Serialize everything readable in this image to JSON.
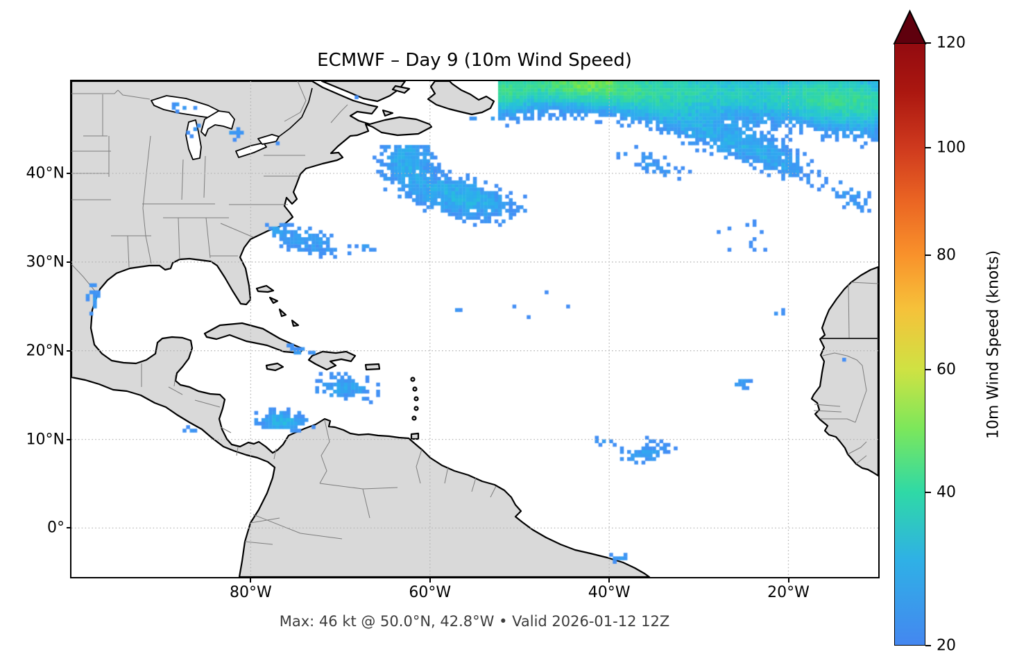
{
  "title": "ECMWF – Day 9 (10m Wind Speed)",
  "caption": "Max: 46 kt @ 50.0°N, 42.8°W • Valid 2026-01-12 12Z",
  "axes": {
    "x_ticks": [
      {
        "label": "80°W",
        "lon": -80
      },
      {
        "label": "60°W",
        "lon": -60
      },
      {
        "label": "40°W",
        "lon": -40
      },
      {
        "label": "20°W",
        "lon": -20
      }
    ],
    "y_ticks": [
      {
        "label": "40°N",
        "lat": 40
      },
      {
        "label": "30°N",
        "lat": 30
      },
      {
        "label": "20°N",
        "lat": 20
      },
      {
        "label": "10°N",
        "lat": 10
      },
      {
        "label": "0°",
        "lat": 0
      }
    ]
  },
  "colorbar": {
    "label": "10m Wind Speed (knots)",
    "ticks": [
      {
        "label": "120",
        "f": 0.0
      },
      {
        "label": "100",
        "f": 0.174
      },
      {
        "label": "80",
        "f": 0.352
      },
      {
        "label": "60",
        "f": 0.542
      },
      {
        "label": "40",
        "f": 0.746
      },
      {
        "label": "20",
        "f": 1.0
      }
    ],
    "arrow_color": "#5f000d",
    "gradient": [
      [
        "0%",
        "#930b10"
      ],
      [
        "8%",
        "#ab1710"
      ],
      [
        "17.4%",
        "#cf3a1e"
      ],
      [
        "26%",
        "#ea6423"
      ],
      [
        "35.2%",
        "#f9922b"
      ],
      [
        "44%",
        "#f6c13a"
      ],
      [
        "54.2%",
        "#cfe243"
      ],
      [
        "64%",
        "#7ce75b"
      ],
      [
        "74.6%",
        "#2fd9a6"
      ],
      [
        "86%",
        "#2fb0e6"
      ],
      [
        "100%",
        "#4487f0"
      ]
    ]
  },
  "colors": {
    "land": "#d9d9d9",
    "coastline": "#000000",
    "state_borders": "#7d7d7d",
    "gridlines": "#b3b3b3",
    "ocean": "#ffffff",
    "caption_text": "#3c3c3c"
  },
  "chart_data": {
    "type": "heatmap",
    "projection": "plate-carree",
    "model": "ECMWF",
    "lead": "Day 9",
    "field": "10m Wind Speed",
    "units": "knots",
    "valid": "2026-01-12 12Z",
    "extent": {
      "lon": [
        -100,
        -9.98
      ],
      "lat": [
        -5.52,
        50.4
      ]
    },
    "threshold_min_kt": 20,
    "scale_max_kt": 120,
    "max_value": {
      "knots": 46,
      "lat": 50.0,
      "lon": -42.8
    },
    "colormap_stops": [
      [
        20,
        "#448EF5"
      ],
      [
        26,
        "#2FAAF0"
      ],
      [
        31,
        "#26C4D7"
      ],
      [
        36,
        "#2DD4B0"
      ],
      [
        41,
        "#42DD84"
      ],
      [
        44,
        "#60E25C"
      ],
      [
        46,
        "#80E646"
      ]
    ],
    "cell_deg": 0.4,
    "base_kt": 15,
    "noise_kt": 5.5,
    "wind_blobs": [
      [
        -38.0,
        49.6,
        26.0,
        3.1,
        -3,
        22.0
      ],
      [
        -42.8,
        50.2,
        5.0,
        1.8,
        0,
        9.0
      ],
      [
        -13.0,
        48.2,
        8.0,
        3.8,
        -8,
        16.0
      ],
      [
        -52.5,
        48.6,
        4.0,
        2.4,
        0,
        12.0
      ],
      [
        -29.0,
        44.3,
        8.0,
        2.0,
        -22,
        9.0
      ],
      [
        -21.5,
        41.8,
        6.0,
        1.8,
        -28,
        8.0
      ],
      [
        -12.5,
        37.2,
        3.0,
        1.8,
        -20,
        6.5
      ],
      [
        -35.5,
        41.2,
        5.0,
        1.5,
        -18,
        7.0
      ],
      [
        -56.5,
        37.3,
        7.0,
        2.3,
        -12,
        13.0
      ],
      [
        -62.5,
        41.8,
        3.2,
        2.8,
        0,
        11.0
      ],
      [
        -58.5,
        48.3,
        3.0,
        1.6,
        0,
        7.0
      ],
      [
        -67.0,
        31.8,
        2.2,
        0.6,
        -10,
        5.5
      ],
      [
        -73.5,
        32.3,
        4.6,
        1.6,
        -14,
        9.0
      ],
      [
        -77.3,
        33.6,
        1.2,
        0.8,
        0,
        5.0
      ],
      [
        -97.6,
        25.8,
        0.9,
        2.1,
        0,
        7.5
      ],
      [
        -97.1,
        22.8,
        0.7,
        1.0,
        0,
        5.0
      ],
      [
        -74.5,
        19.9,
        2.3,
        0.9,
        -10,
        7.0
      ],
      [
        -69.5,
        15.8,
        3.8,
        1.7,
        -8,
        10.0
      ],
      [
        -76.5,
        12.1,
        3.0,
        1.3,
        -5,
        13.0
      ],
      [
        -86.8,
        11.2,
        1.0,
        0.45,
        0,
        6.0
      ],
      [
        -36.0,
        8.6,
        3.4,
        1.5,
        8,
        8.5
      ],
      [
        -40.6,
        9.8,
        1.5,
        0.9,
        0,
        5.5
      ],
      [
        -25.3,
        16.2,
        1.5,
        1.2,
        0,
        6.5
      ],
      [
        -20.8,
        24.2,
        1.1,
        0.7,
        0,
        6.0
      ],
      [
        -13.5,
        19.2,
        0.5,
        0.4,
        0,
        4.5
      ],
      [
        -13.1,
        17.7,
        0.35,
        0.3,
        0,
        4.0
      ],
      [
        -38.6,
        -3.3,
        1.7,
        0.7,
        0,
        6.0
      ],
      [
        -56.9,
        24.7,
        0.5,
        0.35,
        0,
        4.5
      ],
      [
        -55.9,
        23.7,
        0.4,
        0.3,
        0,
        4.0
      ],
      [
        -87.8,
        47.6,
        2.0,
        0.7,
        0,
        7.0
      ],
      [
        -86.2,
        44.9,
        1.4,
        1.0,
        0,
        6.0
      ],
      [
        -81.8,
        44.6,
        1.5,
        0.9,
        0,
        6.0
      ],
      [
        -77.6,
        43.6,
        1.9,
        0.3,
        0,
        6.0
      ],
      [
        -25.0,
        33.0,
        8.0,
        4.0,
        0,
        3.2
      ],
      [
        -48.0,
        25.0,
        10.0,
        6.0,
        0,
        2.6
      ]
    ],
    "wind_masks": [
      [
        -59.8,
        -52.5,
        46.5,
        50.4
      ],
      [
        -67.0,
        -59.5,
        43.3,
        49.0
      ],
      [
        -72.0,
        -60.0,
        49.0,
        50.4
      ]
    ],
    "gridlines": "dotted"
  }
}
